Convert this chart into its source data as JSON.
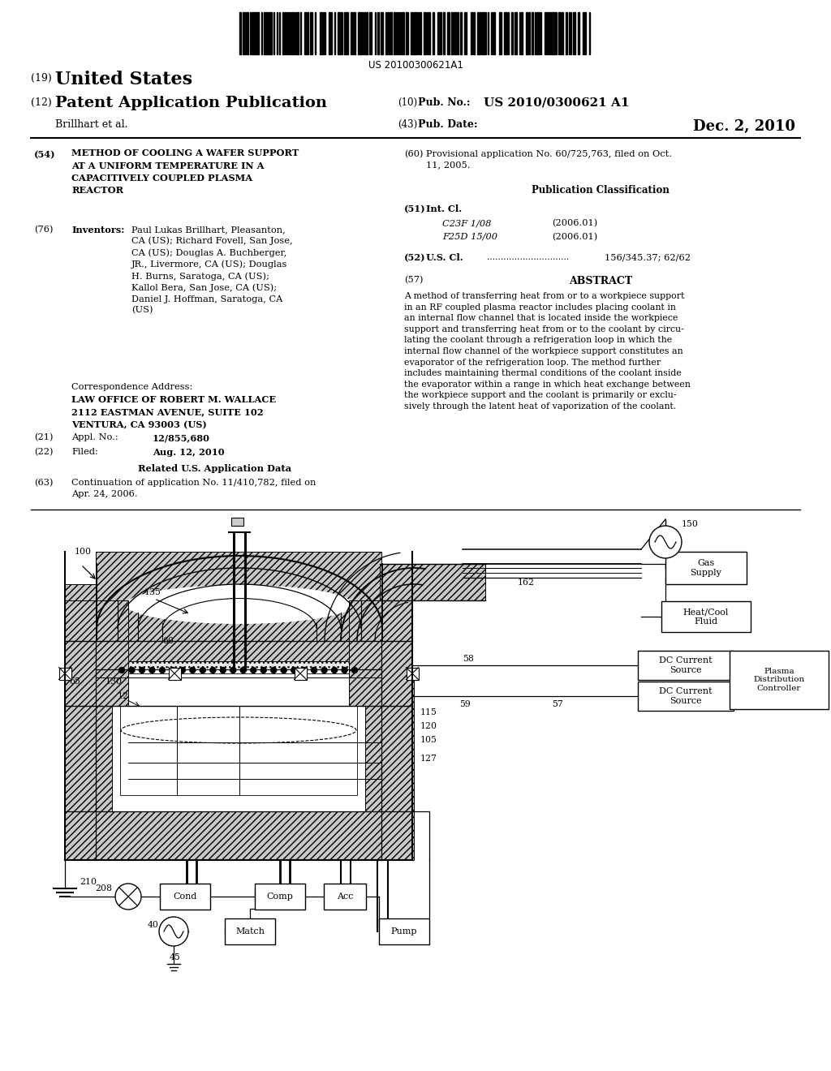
{
  "bg_color": "#ffffff",
  "barcode_text": "US 20100300621A1",
  "pub_no_value": "US 2010/0300621 A1",
  "pub_date_value": "Dec. 2, 2010",
  "title54": "METHOD OF COOLING A WAFER SUPPORT\nAT A UNIFORM TEMPERATURE IN A\nCAPACITIVELY COUPLED PLASMA\nREACTOR",
  "inventors_text": "Paul Lukas Brillhart, Pleasanton,\nCA (US); Richard Fovell, San Jose,\nCA (US); Douglas A. Buchberger,\nJR., Livermore, CA (US); Douglas\nH. Burns, Saratoga, CA (US);\nKallol Bera, San Jose, CA (US);\nDaniel J. Hoffman, Saratoga, CA\n(US)",
  "corr_address": "LAW OFFICE OF ROBERT M. WALLACE\n2112 EASTMAN AVENUE, SUITE 102\nVENTURA, CA 93003 (US)",
  "appl_no": "12/855,680",
  "filed_date": "Aug. 12, 2010",
  "continuation_text": "Continuation of application No. 11/410,782, filed on\nApr. 24, 2006.",
  "provisional_text": "Provisional application No. 60/725,763, filed on Oct.\n11, 2005.",
  "c23f": "C23F 1/08",
  "f25d": "F25D 15/00",
  "us_cl": "156/345.37; 62/62",
  "abstract": "A method of transferring heat from or to a workpiece support\nin an RF coupled plasma reactor includes placing coolant in\nan internal flow channel that is located inside the workpiece\nsupport and transferring heat from or to the coolant by circu-\nlating the coolant through a refrigeration loop in which the\ninternal flow channel of the workpiece support constitutes an\nevaporator of the refrigeration loop. The method further\nincludes maintaining thermal conditions of the coolant inside\nthe evaporator within a range in which heat exchange between\nthe workpiece support and the coolant is primarily or exclu-\nsively through the latent heat of vaporization of the coolant."
}
